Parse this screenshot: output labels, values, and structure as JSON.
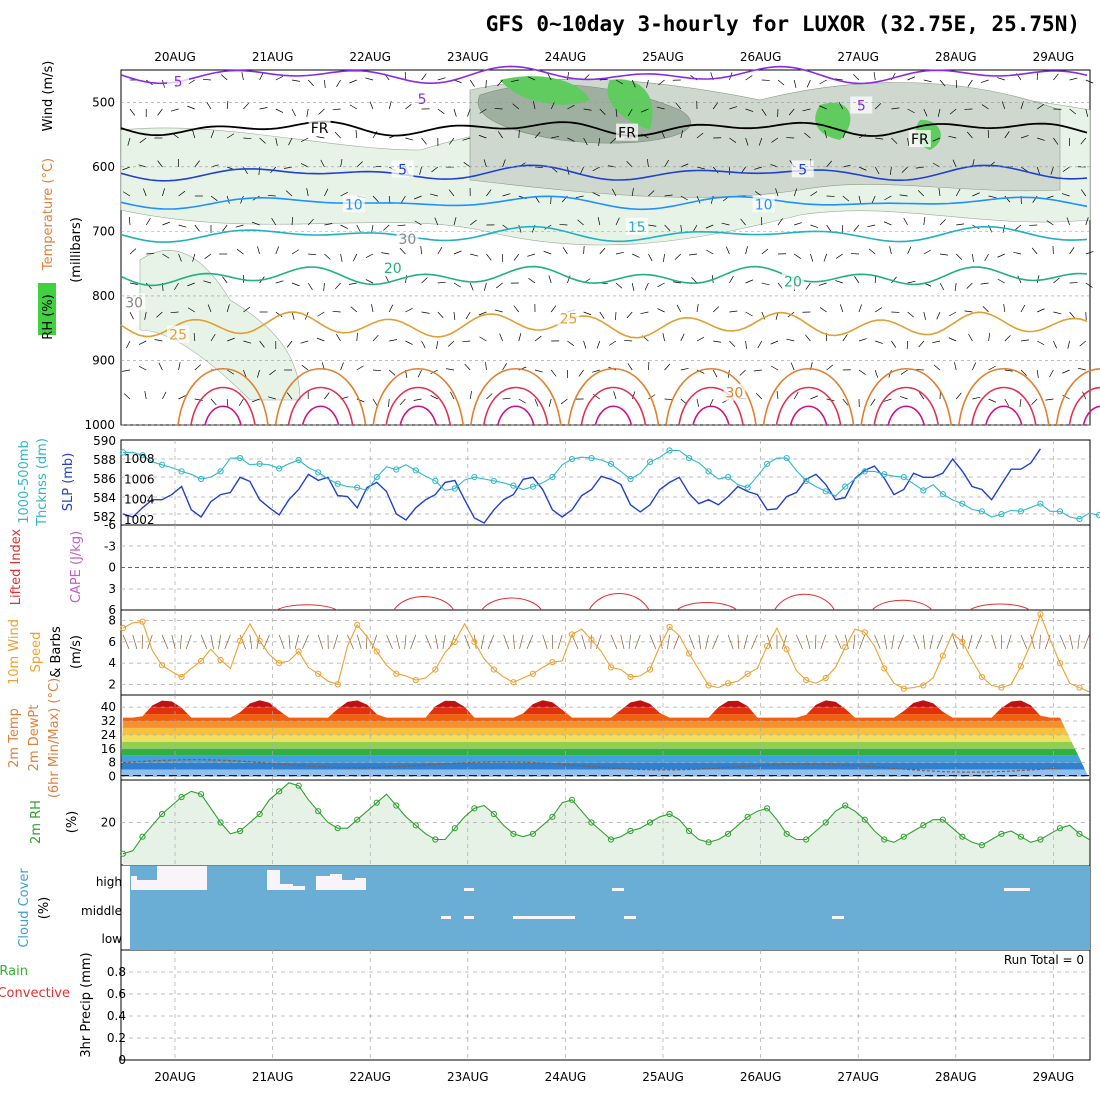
{
  "title": "GFS 0~10day 3-hourly for LUXOR (32.75E, 25.75N)",
  "colors": {
    "temp_label": "#e0803c",
    "rh_box": "#40d040",
    "wind_label": "#000000",
    "slp": "#2040d0",
    "thick": "#30b8c8",
    "lifted": "#e03030",
    "cape": "#c060c0",
    "wind10": "#f0a030",
    "barb": "#8a5a30",
    "rh2m": "#30a030",
    "cloud": "#6aaed6",
    "cloud_label": "#40a0d0",
    "rain": "#e03030",
    "total": "#30b030"
  },
  "chart_data": [
    {
      "type": "contour",
      "name": "upper-air",
      "xlabels": [
        "20AUG",
        "21AUG",
        "22AUG",
        "23AUG",
        "24AUG",
        "25AUG",
        "26AUG",
        "27AUG",
        "28AUG",
        "29AUG"
      ],
      "ylabel_parts": [
        "RH (%)",
        "Temperature (°C)",
        "Wind (m/s)",
        "(millibars)"
      ],
      "yticks": [
        500,
        600,
        700,
        800,
        900,
        1000
      ],
      "ylim": [
        450,
        1000
      ],
      "contour_labels": [
        {
          "text": "5",
          "day": 0.8,
          "p": 468,
          "color": "#8a2be2"
        },
        {
          "text": "5",
          "day": 3.3,
          "p": 495,
          "color": "#8a2be2"
        },
        {
          "text": "5",
          "day": 7.8,
          "p": 505,
          "color": "#8a2be2"
        },
        {
          "text": "FR",
          "day": 2.25,
          "p": 540,
          "color": "#000000"
        },
        {
          "text": "FR",
          "day": 5.4,
          "p": 547,
          "color": "#000000"
        },
        {
          "text": "FR",
          "day": 8.4,
          "p": 557,
          "color": "#000000"
        },
        {
          "text": "5",
          "day": 3.1,
          "p": 604,
          "color": "#2040d0"
        },
        {
          "text": "5",
          "day": 7.2,
          "p": 604,
          "color": "#2040d0"
        },
        {
          "text": "10",
          "day": 2.6,
          "p": 658,
          "color": "#1e90ff"
        },
        {
          "text": "10",
          "day": 6.8,
          "p": 658,
          "color": "#1e90ff"
        },
        {
          "text": "15",
          "day": 5.5,
          "p": 693,
          "color": "#20b0c0"
        },
        {
          "text": "20",
          "day": 3.0,
          "p": 757,
          "color": "#20b080"
        },
        {
          "text": "20",
          "day": 7.1,
          "p": 778,
          "color": "#20b080"
        },
        {
          "text": "25",
          "day": 0.8,
          "p": 860,
          "color": "#e0a030"
        },
        {
          "text": "25",
          "day": 4.8,
          "p": 835,
          "color": "#e0a030"
        },
        {
          "text": "30",
          "day": 6.5,
          "p": 950,
          "color": "#e08030"
        },
        {
          "text": "30",
          "day": 3.15,
          "p": 712,
          "color": "#888888"
        },
        {
          "text": "30",
          "day": 0.35,
          "p": 810,
          "color": "#888888"
        }
      ]
    },
    {
      "type": "line",
      "name": "slp-thickness",
      "ylabel_left": [
        "1000-500mb",
        "Thcknss (dm)"
      ],
      "ylabel_right": "SLP (mb)",
      "yticks_left": [
        "582",
        "584",
        "586",
        "588",
        "590"
      ],
      "yticks_right": [
        "1002",
        "1004",
        "1006",
        "1008"
      ],
      "series": [
        {
          "name": "SLP (mb)",
          "values": [
            1002.6,
            1002.3,
            1003.2,
            1004.0,
            1004.0,
            1004.5,
            1005.3,
            1003.0,
            1002.3,
            1003.8,
            1004.5,
            1004.7,
            1006.2,
            1005.8,
            1004.0,
            1003.2,
            1002.5,
            1004.0,
            1005.0,
            1006.5,
            1005.9,
            1006.2,
            1004.4,
            1004.3,
            1003.2,
            1005.2,
            1005.7,
            1004.8,
            1002.6,
            1002.0,
            1003.2,
            1004.0,
            1004.5,
            1005.7,
            1005.9,
            1004.0,
            1002.2,
            1001.7,
            1003.0,
            1004.0,
            1004.5,
            1006.0,
            1006.2,
            1005.0,
            1003.0,
            1002.3,
            1003.0,
            1004.4,
            1005.0,
            1006.3,
            1006.0,
            1005.5,
            1003.5,
            1002.8,
            1003.5,
            1005.0,
            1005.7,
            1006.2,
            1004.6,
            1003.6,
            1004.0,
            1003.5,
            1004.3,
            1005.3,
            1004.8,
            1004.5,
            1003.0,
            1003.1,
            1004.3,
            1004.7,
            1006.0,
            1006.5,
            1005.5,
            1004.0,
            1004.2,
            1006.1,
            1006.9,
            1007.3,
            1006.1,
            1004.5,
            1005.0,
            1006.6,
            1006.2,
            1006.2,
            1006.6,
            1008.0,
            1006.8,
            1005.3,
            1005.0,
            1004.0,
            1005.5,
            1007.0,
            1007.0,
            1007.6,
            1009.0
          ]
        },
        {
          "name": "1000-500mb Thickness (dm)",
          "values": [
            588.8,
            588.8,
            588.5,
            587.8,
            587.5,
            587.2,
            586.8,
            586.5,
            586.0,
            586.2,
            586.8,
            588.2,
            588.2,
            587.5,
            587.6,
            587.5,
            587.1,
            587.6,
            588.0,
            587.2,
            586.7,
            586.0,
            585.5,
            585.2,
            585.1,
            584.8,
            586.2,
            587.3,
            587.0,
            587.5,
            586.9,
            586.3,
            585.8,
            584.8,
            585.0,
            585.9,
            586.2,
            586.0,
            585.8,
            585.6,
            585.3,
            584.9,
            585.2,
            585.6,
            586.2,
            587.5,
            588.1,
            588.3,
            588.2,
            588.0,
            587.6,
            586.8,
            586.0,
            586.6,
            587.8,
            588.3,
            589.0,
            589.0,
            588.2,
            587.7,
            586.8,
            586.0,
            586.2,
            585.4,
            585.1,
            586.3,
            587.6,
            588.2,
            588.2,
            586.9,
            585.8,
            585.2,
            584.7,
            584.2,
            585.2,
            586.0,
            586.8,
            586.8,
            586.5,
            586.3,
            586.2,
            585.5,
            584.8,
            585.4,
            584.4,
            583.8,
            583.4,
            582.8,
            582.6,
            582.0,
            582.3,
            582.7,
            582.6,
            583.0,
            583.4,
            582.6,
            582.6,
            582.0,
            581.8,
            582.4,
            582.2
          ]
        }
      ]
    },
    {
      "type": "line",
      "name": "lifted-cape",
      "ylabel_parts": [
        "Lifted Index",
        "CAPE (J/kg)"
      ],
      "yticks": [
        "-6",
        "-3",
        "0",
        "3",
        "6"
      ],
      "ylim": [
        -6,
        6
      ],
      "series": [
        {
          "name": "Lifted Index",
          "values": []
        }
      ]
    },
    {
      "type": "line",
      "name": "wind10m",
      "ylabel_parts": [
        "10m Wind",
        "Speed",
        "& Barbs",
        "(m/s)"
      ],
      "yticks": [
        "2",
        "4",
        "6",
        "8"
      ],
      "ylim": [
        1,
        9
      ],
      "series": [
        {
          "name": "10m Wind Speed (m/s)",
          "values": [
            7.3,
            7.8,
            7.9,
            5.2,
            3.8,
            3.2,
            2.7,
            3.5,
            4.2,
            5.3,
            4.3,
            3.5,
            6.1,
            7.7,
            6.1,
            4.8,
            4.0,
            4.2,
            5.1,
            3.6,
            3.0,
            2.3,
            2.0,
            5.6,
            7.6,
            6.5,
            5.1,
            3.8,
            3.0,
            2.8,
            2.4,
            2.6,
            3.4,
            5.0,
            6.0,
            7.7,
            6.0,
            4.4,
            3.4,
            2.7,
            2.2,
            2.6,
            3.0,
            3.6,
            4.1,
            4.2,
            6.7,
            7.2,
            6.2,
            5.1,
            3.6,
            3.4,
            2.7,
            2.8,
            3.4,
            5.6,
            7.4,
            6.6,
            4.9,
            3.4,
            1.9,
            1.7,
            2.1,
            2.3,
            3.0,
            3.5,
            5.6,
            7.3,
            5.3,
            3.3,
            2.4,
            2.1,
            2.6,
            3.6,
            5.5,
            7.2,
            6.9,
            5.6,
            3.5,
            2.1,
            1.6,
            1.7,
            1.9,
            2.6,
            4.7,
            6.8,
            6.0,
            4.3,
            2.7,
            1.9,
            1.7,
            2.0,
            3.7,
            5.8,
            8.6,
            6.2,
            4.0,
            2.1,
            1.7,
            1.3
          ]
        }
      ]
    },
    {
      "type": "area",
      "name": "temp2m",
      "ylabel_parts": [
        "2m Temp",
        "2m DewPt",
        "(6hr Min/Max) (°C)"
      ],
      "yticks": [
        "0",
        "8",
        "16",
        "24",
        "32",
        "40"
      ],
      "ylim": [
        -2,
        47
      ],
      "series": [
        {
          "name": "2m Temp max (°C)",
          "values": [
            44,
            42,
            40,
            38,
            37,
            38,
            41,
            43,
            44,
            44,
            43,
            42,
            40,
            38,
            37,
            38,
            41,
            43,
            44,
            44,
            44,
            42,
            40,
            38,
            37,
            38,
            41,
            43,
            44,
            44
          ]
        }
      ]
    },
    {
      "type": "line",
      "name": "rh2m",
      "ylabel_parts": [
        "2m RH",
        "(%)"
      ],
      "yticks": [
        "20"
      ],
      "ylim": [
        5,
        35
      ],
      "series": [
        {
          "name": "2m RH (%)",
          "values": [
            9,
            10,
            15,
            19,
            23,
            26,
            29,
            31,
            30,
            25,
            20,
            16,
            17,
            20,
            23,
            28,
            31,
            34,
            33,
            28,
            24,
            20,
            18,
            18,
            21,
            24,
            27,
            30,
            26,
            22,
            19,
            16,
            14,
            14,
            18,
            22,
            25,
            26,
            23,
            19,
            16,
            15,
            16,
            19,
            22,
            27,
            28,
            24,
            20,
            17,
            14,
            15,
            17,
            18,
            20,
            22,
            23,
            21,
            17,
            14,
            13,
            14,
            16,
            19,
            22,
            24,
            25,
            21,
            16,
            14,
            14,
            17,
            20,
            24,
            26,
            24,
            21,
            17,
            14,
            13,
            15,
            17,
            19,
            21,
            21,
            18,
            15,
            13,
            12,
            14,
            16,
            17,
            15,
            13,
            14,
            16,
            18,
            19,
            16,
            14
          ]
        }
      ]
    },
    {
      "type": "heatmap",
      "name": "cloud-cover",
      "ylabel_parts": [
        "Cloud Cover",
        "(%)"
      ],
      "level_labels": [
        "high",
        "middle",
        "low"
      ]
    },
    {
      "type": "bar",
      "name": "precip",
      "ylabel_parts": [
        "Total / Rain",
        "Convective",
        "3hr Precip (mm)"
      ],
      "yticks": [
        "0",
        "0.2",
        "0.4",
        "0.6",
        "0.8"
      ],
      "ylim": [
        0,
        1.0
      ],
      "run_total_label": "Run Total = 0",
      "values": []
    }
  ]
}
